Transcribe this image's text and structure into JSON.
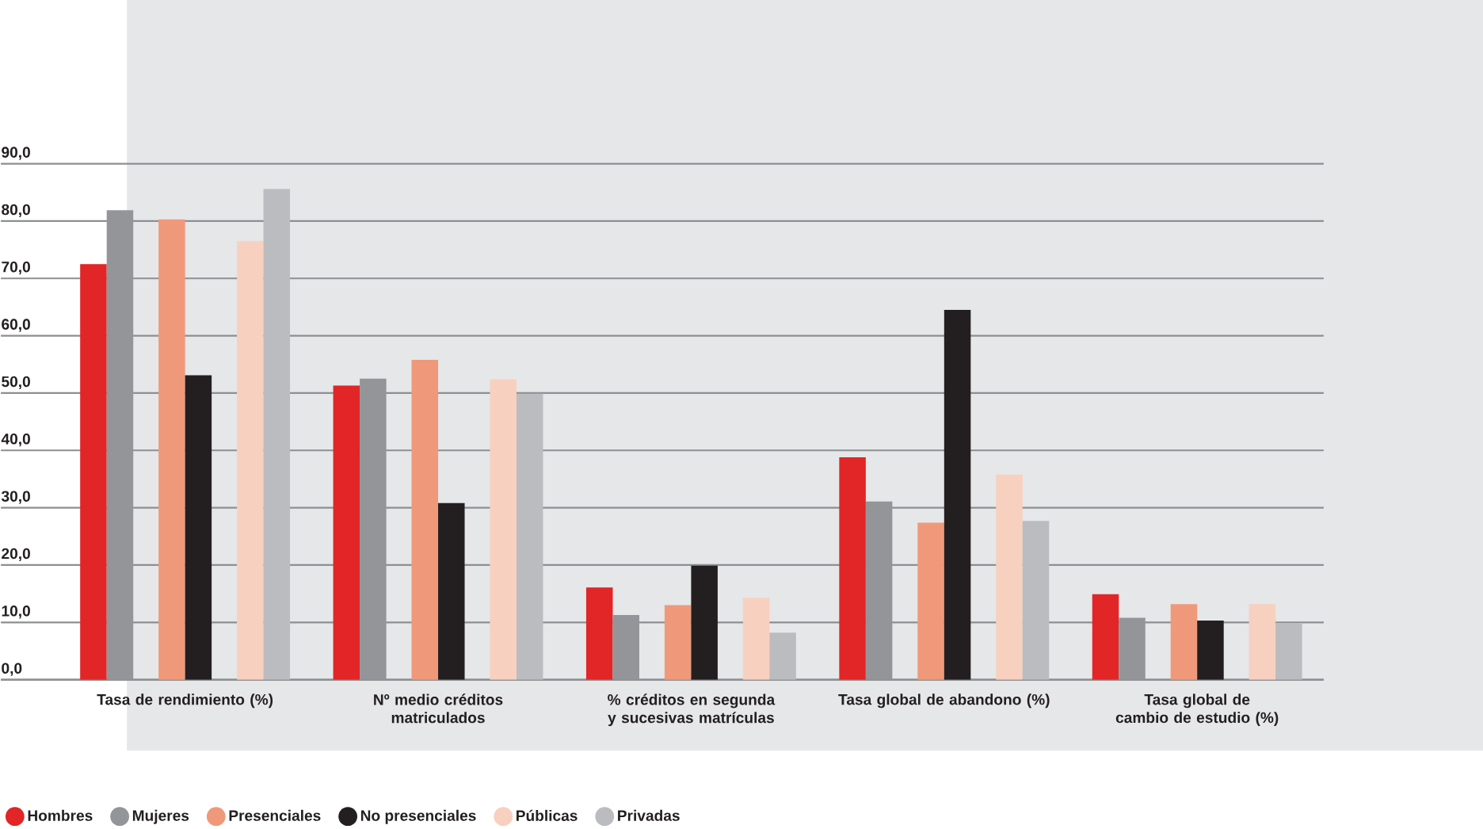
{
  "chart_data": {
    "type": "bar",
    "categories": [
      "Tasa de rendimiento (%)",
      "Nº medio créditos matriculados",
      "% créditos en segunda y sucesivas matrículas",
      "Tasa global de abandono (%)",
      "Tasa global de cambio de estudio (%)"
    ],
    "series": [
      {
        "name": "Hombres",
        "color": "#e22526",
        "values": [
          72.5,
          51.3,
          16.1,
          38.8,
          14.9
        ]
      },
      {
        "name": "Mujeres",
        "color": "#939598",
        "values": [
          81.9,
          52.5,
          11.3,
          31.1,
          10.8
        ]
      },
      {
        "name": "Presenciales",
        "color": "#f0997a",
        "values": [
          80.3,
          55.8,
          13.0,
          27.4,
          13.2
        ]
      },
      {
        "name": "No presenciales",
        "color": "#231f20",
        "values": [
          53.1,
          30.8,
          19.9,
          64.5,
          10.3
        ]
      },
      {
        "name": "Públicas",
        "color": "#f8d0bf",
        "values": [
          76.5,
          52.4,
          14.3,
          35.8,
          13.2
        ]
      },
      {
        "name": "Privadas",
        "color": "#bbbcbf",
        "values": [
          85.6,
          49.9,
          8.2,
          27.7,
          9.9
        ]
      }
    ],
    "ylim": [
      0,
      90
    ],
    "yticks": [
      {
        "value": 0,
        "label": "0,0"
      },
      {
        "value": 10,
        "label": "10,0"
      },
      {
        "value": 20,
        "label": "20,0"
      },
      {
        "value": 30,
        "label": "30,0"
      },
      {
        "value": 40,
        "label": "40,0"
      },
      {
        "value": 50,
        "label": "50,0"
      },
      {
        "value": 60,
        "label": "60,0"
      },
      {
        "value": 70,
        "label": "70,0"
      },
      {
        "value": 80,
        "label": "80,0"
      },
      {
        "value": 90,
        "label": "90,0"
      }
    ],
    "grid": "y",
    "legend": "bottom"
  }
}
